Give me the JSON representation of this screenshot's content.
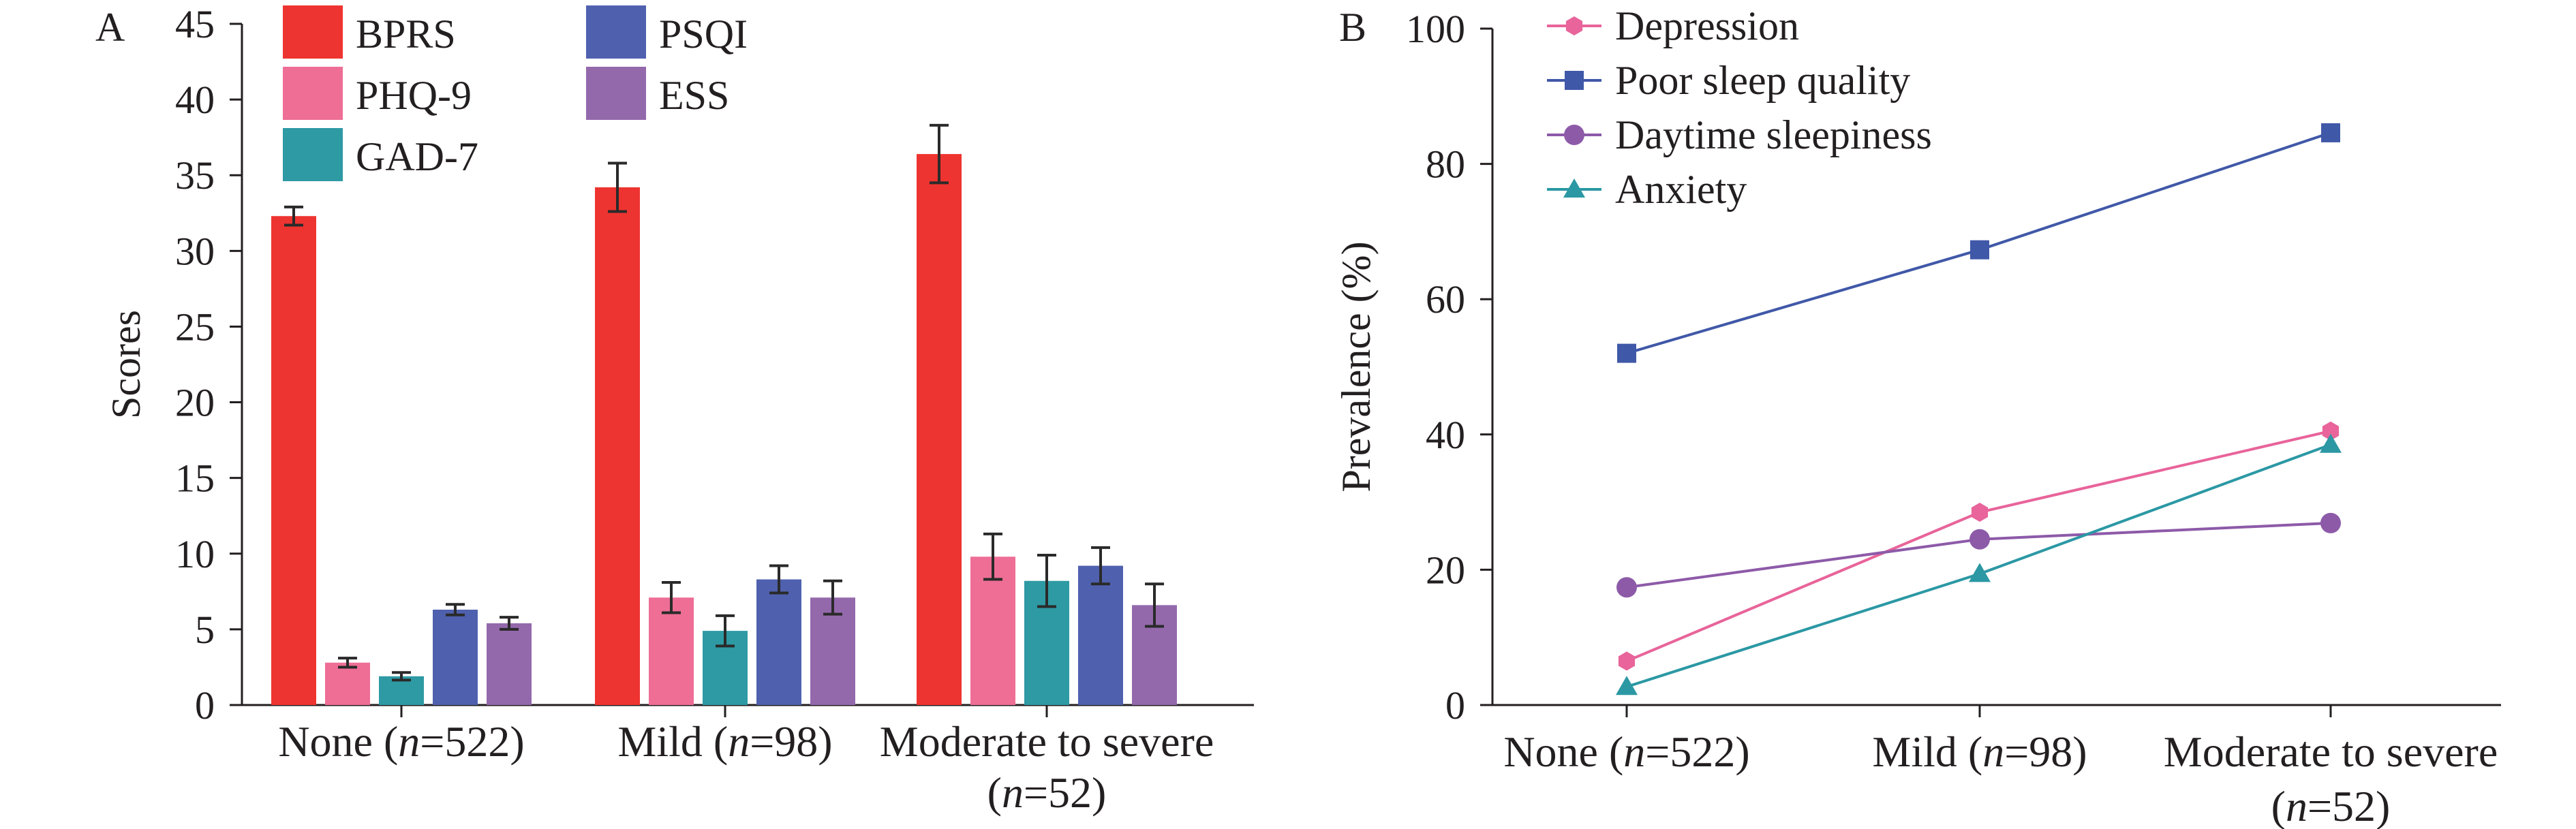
{
  "chart_data": [
    {
      "type": "bar",
      "panel_label": "A",
      "ylabel": "Scores",
      "xlabel": "",
      "ylim": [
        0,
        45
      ],
      "yticks": [
        0,
        5,
        10,
        15,
        20,
        25,
        30,
        35,
        40,
        45
      ],
      "categories": [
        {
          "pre": "None (",
          "n": "n",
          "post": "=522)"
        },
        {
          "pre": "Mild (",
          "n": "n",
          "post": "=98)"
        },
        {
          "pre": "Moderate to severe",
          "line2": "(",
          "n": "n",
          "post": "=52)"
        }
      ],
      "legend_position": "top-left",
      "series": [
        {
          "name": "BPRS",
          "color": "#ee3430",
          "values": [
            32.3,
            34.2,
            36.4
          ],
          "errors": [
            0.6,
            1.6,
            1.9
          ]
        },
        {
          "name": "PHQ-9",
          "color": "#ee6e96",
          "values": [
            2.8,
            7.1,
            9.8
          ],
          "errors": [
            0.3,
            1.0,
            1.5
          ]
        },
        {
          "name": "GAD-7",
          "color": "#2e9aa4",
          "values": [
            1.9,
            4.9,
            8.2
          ],
          "errors": [
            0.25,
            1.0,
            1.7
          ]
        },
        {
          "name": "PSQI",
          "color": "#4f61ae",
          "values": [
            6.3,
            8.3,
            9.2
          ],
          "errors": [
            0.35,
            0.9,
            1.2
          ]
        },
        {
          "name": "ESS",
          "color": "#9469ac",
          "values": [
            5.4,
            7.1,
            6.6
          ],
          "errors": [
            0.4,
            1.1,
            1.4
          ]
        }
      ]
    },
    {
      "type": "line",
      "panel_label": "B",
      "ylabel": "Prevalence (%)",
      "xlabel": "",
      "ylim": [
        0,
        100
      ],
      "yticks": [
        0,
        20,
        40,
        60,
        80,
        100
      ],
      "categories": [
        {
          "pre": "None (",
          "n": "n",
          "post": "=522)"
        },
        {
          "pre": "Mild (",
          "n": "n",
          "post": "=98)"
        },
        {
          "pre": "Moderate to severe",
          "line2": "(",
          "n": "n",
          "post": "=52)"
        }
      ],
      "legend_position": "top-left",
      "series": [
        {
          "name": "Depression",
          "color": "#e8649a",
          "marker": "hexagon",
          "values": [
            6.5,
            28.5,
            40.5
          ]
        },
        {
          "name": "Poor sleep quality",
          "color": "#4058a8",
          "marker": "square",
          "values": [
            52.0,
            67.3,
            84.6
          ]
        },
        {
          "name": "Daytime sleepiness",
          "color": "#8d5aa8",
          "marker": "circle",
          "values": [
            17.4,
            24.5,
            26.9
          ]
        },
        {
          "name": "Anxiety",
          "color": "#2b98a4",
          "marker": "triangle",
          "values": [
            2.7,
            19.4,
            38.5
          ]
        }
      ]
    }
  ]
}
